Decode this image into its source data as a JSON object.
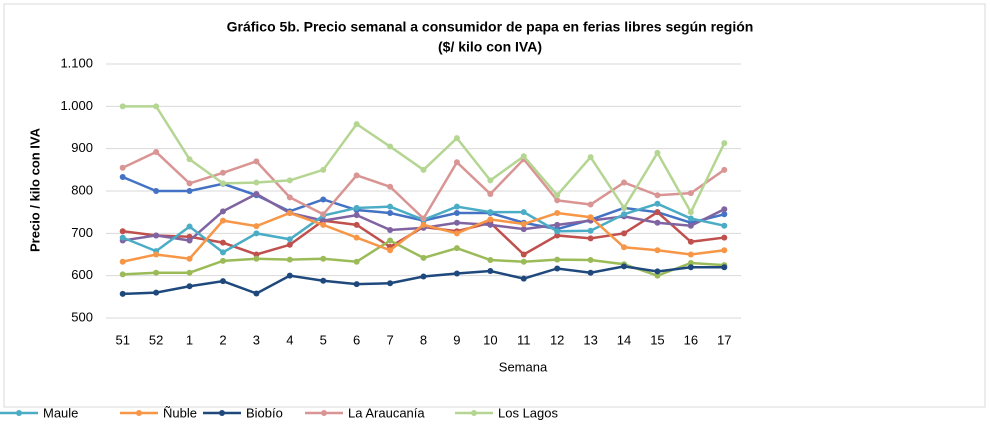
{
  "chart_data": {
    "type": "line",
    "title": "Gráfico 5b. Precio semanal a consumidor de papa en ferias libres según región",
    "subtitle": "($/ kilo con IVA)",
    "x_label": "Semana",
    "y_label": "Precio / kilo con IVA",
    "categories": [
      "51",
      "52",
      "1",
      "2",
      "3",
      "4",
      "5",
      "6",
      "7",
      "8",
      "9",
      "10",
      "11",
      "12",
      "13",
      "14",
      "15",
      "16",
      "17"
    ],
    "ylim": [
      500,
      1100
    ],
    "yticks": [
      500,
      600,
      700,
      800,
      900,
      {
        "value": 1000,
        "label": "1.000"
      },
      {
        "value": 1100,
        "label": "1.100"
      }
    ],
    "grid": true,
    "series": [
      {
        "color": "#4472c4",
        "values": [
          833,
          800,
          800,
          817,
          790,
          752,
          780,
          755,
          748,
          730,
          748,
          748,
          725,
          710,
          732,
          760,
          750,
          725,
          745
        ]
      },
      {
        "color": "#c0504d",
        "values": [
          705,
          695,
          692,
          678,
          650,
          673,
          730,
          720,
          668,
          715,
          705,
          725,
          650,
          695,
          688,
          700,
          750,
          680,
          690
        ]
      },
      {
        "color": "#9bbb59",
        "values": [
          603,
          607,
          607,
          635,
          640,
          638,
          640,
          633,
          683,
          642,
          665,
          637,
          633,
          638,
          637,
          627,
          600,
          630,
          625
        ]
      },
      {
        "color": "#8064a2",
        "values": [
          683,
          695,
          683,
          752,
          793,
          748,
          730,
          743,
          708,
          713,
          725,
          720,
          710,
          720,
          730,
          740,
          725,
          718,
          757
        ]
      },
      {
        "name": "Maule",
        "color": "#4bacc6",
        "values": [
          690,
          658,
          716,
          655,
          700,
          686,
          742,
          760,
          763,
          732,
          763,
          750,
          750,
          705,
          706,
          745,
          770,
          735,
          718
        ]
      },
      {
        "name": "Ñuble",
        "color": "#f79646",
        "values": [
          633,
          650,
          640,
          730,
          717,
          748,
          720,
          690,
          660,
          720,
          700,
          733,
          722,
          748,
          738,
          667,
          660,
          650,
          660
        ]
      },
      {
        "name": "Biobío",
        "color": "#1f497d",
        "values": [
          557,
          560,
          575,
          587,
          558,
          600,
          588,
          580,
          582,
          598,
          605,
          611,
          593,
          617,
          607,
          622,
          610,
          620,
          620
        ]
      },
      {
        "name": "La Araucanía",
        "color": "#d99594",
        "values": [
          855,
          892,
          818,
          843,
          870,
          785,
          745,
          837,
          810,
          735,
          868,
          793,
          875,
          778,
          768,
          820,
          790,
          795,
          850
        ]
      },
      {
        "name": "Los Lagos",
        "color": "#b5d692",
        "values": [
          1000,
          1000,
          875,
          818,
          820,
          825,
          850,
          958,
          905,
          850,
          925,
          825,
          882,
          790,
          880,
          760,
          890,
          750,
          913
        ]
      }
    ]
  }
}
